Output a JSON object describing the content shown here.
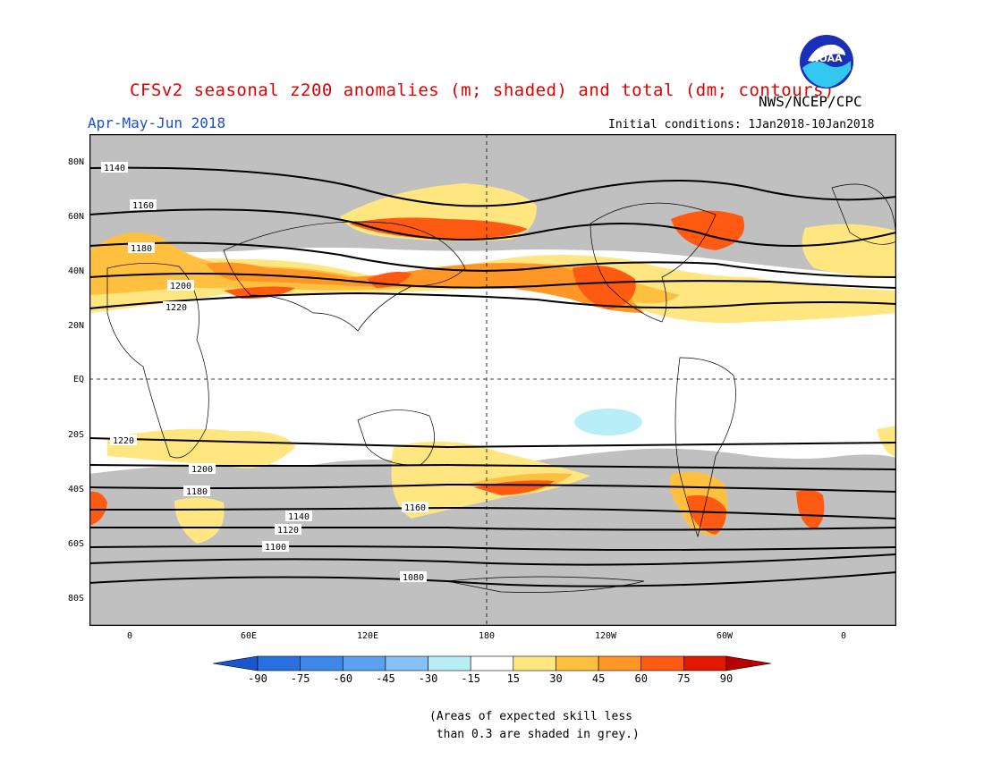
{
  "header": {
    "title": "CFSv2 seasonal z200 anomalies (m; shaded) and total (dm; contours)",
    "agency": "NWS/NCEP/CPC",
    "period": "Apr-May-Jun 2018",
    "initial_conditions": "Initial conditions: 1Jan2018-10Jan2018",
    "logo_text": "NOAA"
  },
  "map": {
    "latitude_labels": [
      "80N",
      "60N",
      "40N",
      "20N",
      "EQ",
      "20S",
      "40S",
      "60S",
      "80S"
    ],
    "longitude_labels": [
      "0",
      "60E",
      "120E",
      "180",
      "120W",
      "60W",
      "0"
    ],
    "contour_labels": [
      "1140",
      "1160",
      "1180",
      "1200",
      "1220",
      "1220",
      "1200",
      "1180",
      "1160",
      "1140",
      "1120",
      "1100",
      "1080"
    ],
    "colors": {
      "skill_grey": "#c0c0c0",
      "positive_15_30": "#ffe680",
      "positive_30_45": "#ffc040",
      "positive_45_60": "#ff9626",
      "positive_60_75": "#ff5a12",
      "positive_75_90": "#e21800",
      "negative_15_30": "#b8eef8"
    }
  },
  "colorbar": {
    "labels": [
      "-90",
      "-75",
      "-60",
      "-45",
      "-30",
      "-15",
      "15",
      "30",
      "45",
      "60",
      "75",
      "90"
    ],
    "colors": [
      "#2a6fe0",
      "#3d86ea",
      "#5ba1f2",
      "#86c2f7",
      "#b8eef8",
      "#ffffff",
      "#ffe680",
      "#ffc040",
      "#ff9626",
      "#ff5a12",
      "#e21800"
    ],
    "end_low": "#1a55d0",
    "end_high": "#b80000"
  },
  "note": "(Areas of expected skill less\n than 0.3 are shaded in grey.)"
}
